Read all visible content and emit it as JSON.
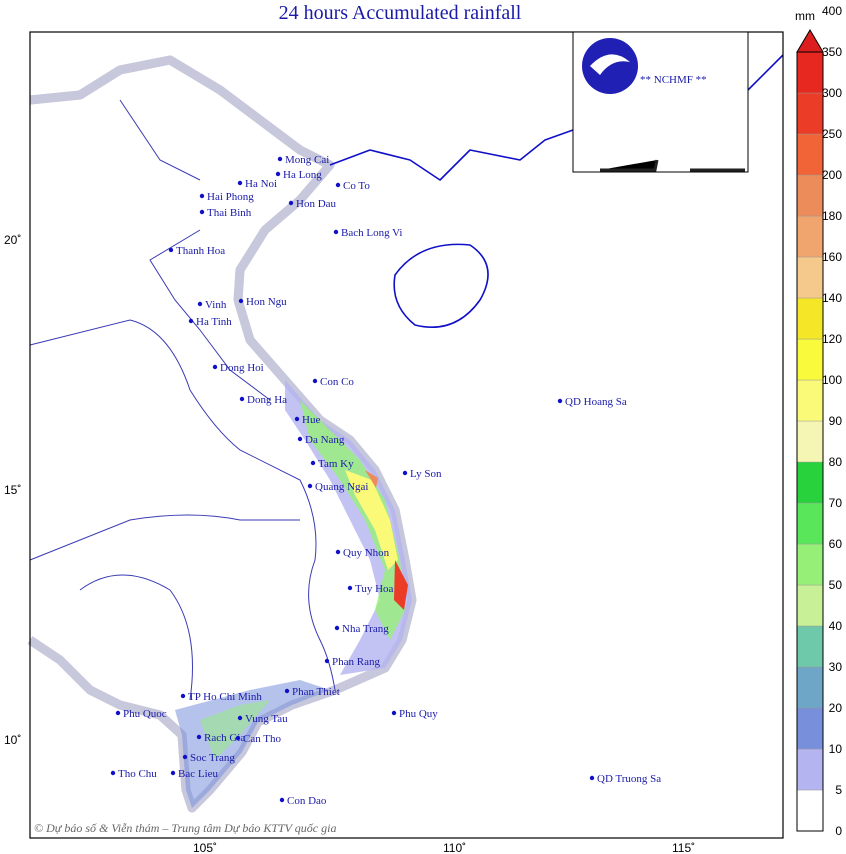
{
  "title": "24 hours Accumulated rainfall",
  "logo_text": "** NCHMF **",
  "copyright": "© Dự báo số & Viễn thám – Trung tâm Dự báo KTTV quốc gia",
  "axes": {
    "lon_ticks": [
      "105˚",
      "110˚",
      "115˚"
    ],
    "lat_ticks": [
      "20˚",
      "15˚",
      "10˚"
    ]
  },
  "legend": {
    "unit": "mm",
    "labels": [
      "0",
      "5",
      "10",
      "20",
      "30",
      "40",
      "50",
      "60",
      "70",
      "80",
      "90",
      "100",
      "120",
      "140",
      "160",
      "180",
      "200",
      "250",
      "300",
      "350",
      "400"
    ],
    "colors": [
      "#ffffff",
      "#b4b4f0",
      "#7890dc",
      "#6ea6c8",
      "#6ec8aa",
      "#c8f096",
      "#96f078",
      "#5ae65a",
      "#28d23c",
      "#f5f5b4",
      "#fafa78",
      "#fafa3c",
      "#f5e628",
      "#f5c88c",
      "#f0a46e",
      "#eb8c5a",
      "#f06438",
      "#eb3c28",
      "#e62820",
      "#dc1e1e"
    ]
  },
  "stations": [
    "Mong Cai",
    "Ha Long",
    "Ha Noi",
    "Hai Phong",
    "Hon Dau",
    "Co To",
    "Thai Binh",
    "Bach Long Vi",
    "Thanh Hoa",
    "Hon Ngu",
    "Vinh",
    "Ha Tinh",
    "Dong Hoi",
    "Con Co",
    "Dong Ha",
    "Hue",
    "Da Nang",
    "Tam Ky",
    "Ly Son",
    "Quang Ngai",
    "QD Hoang Sa",
    "Quy Nhon",
    "Tuy Hoa",
    "Nha Trang",
    "Phan Rang",
    "TP Ho Chi Minh",
    "Phan Thiet",
    "Phu Quoc",
    "Phu Quy",
    "Vung Tau",
    "Rach Gia",
    "Can Tho",
    "Soc Trang",
    "Bac Lieu",
    "Tho Chu",
    "Con Dao",
    "QD Truong Sa"
  ]
}
